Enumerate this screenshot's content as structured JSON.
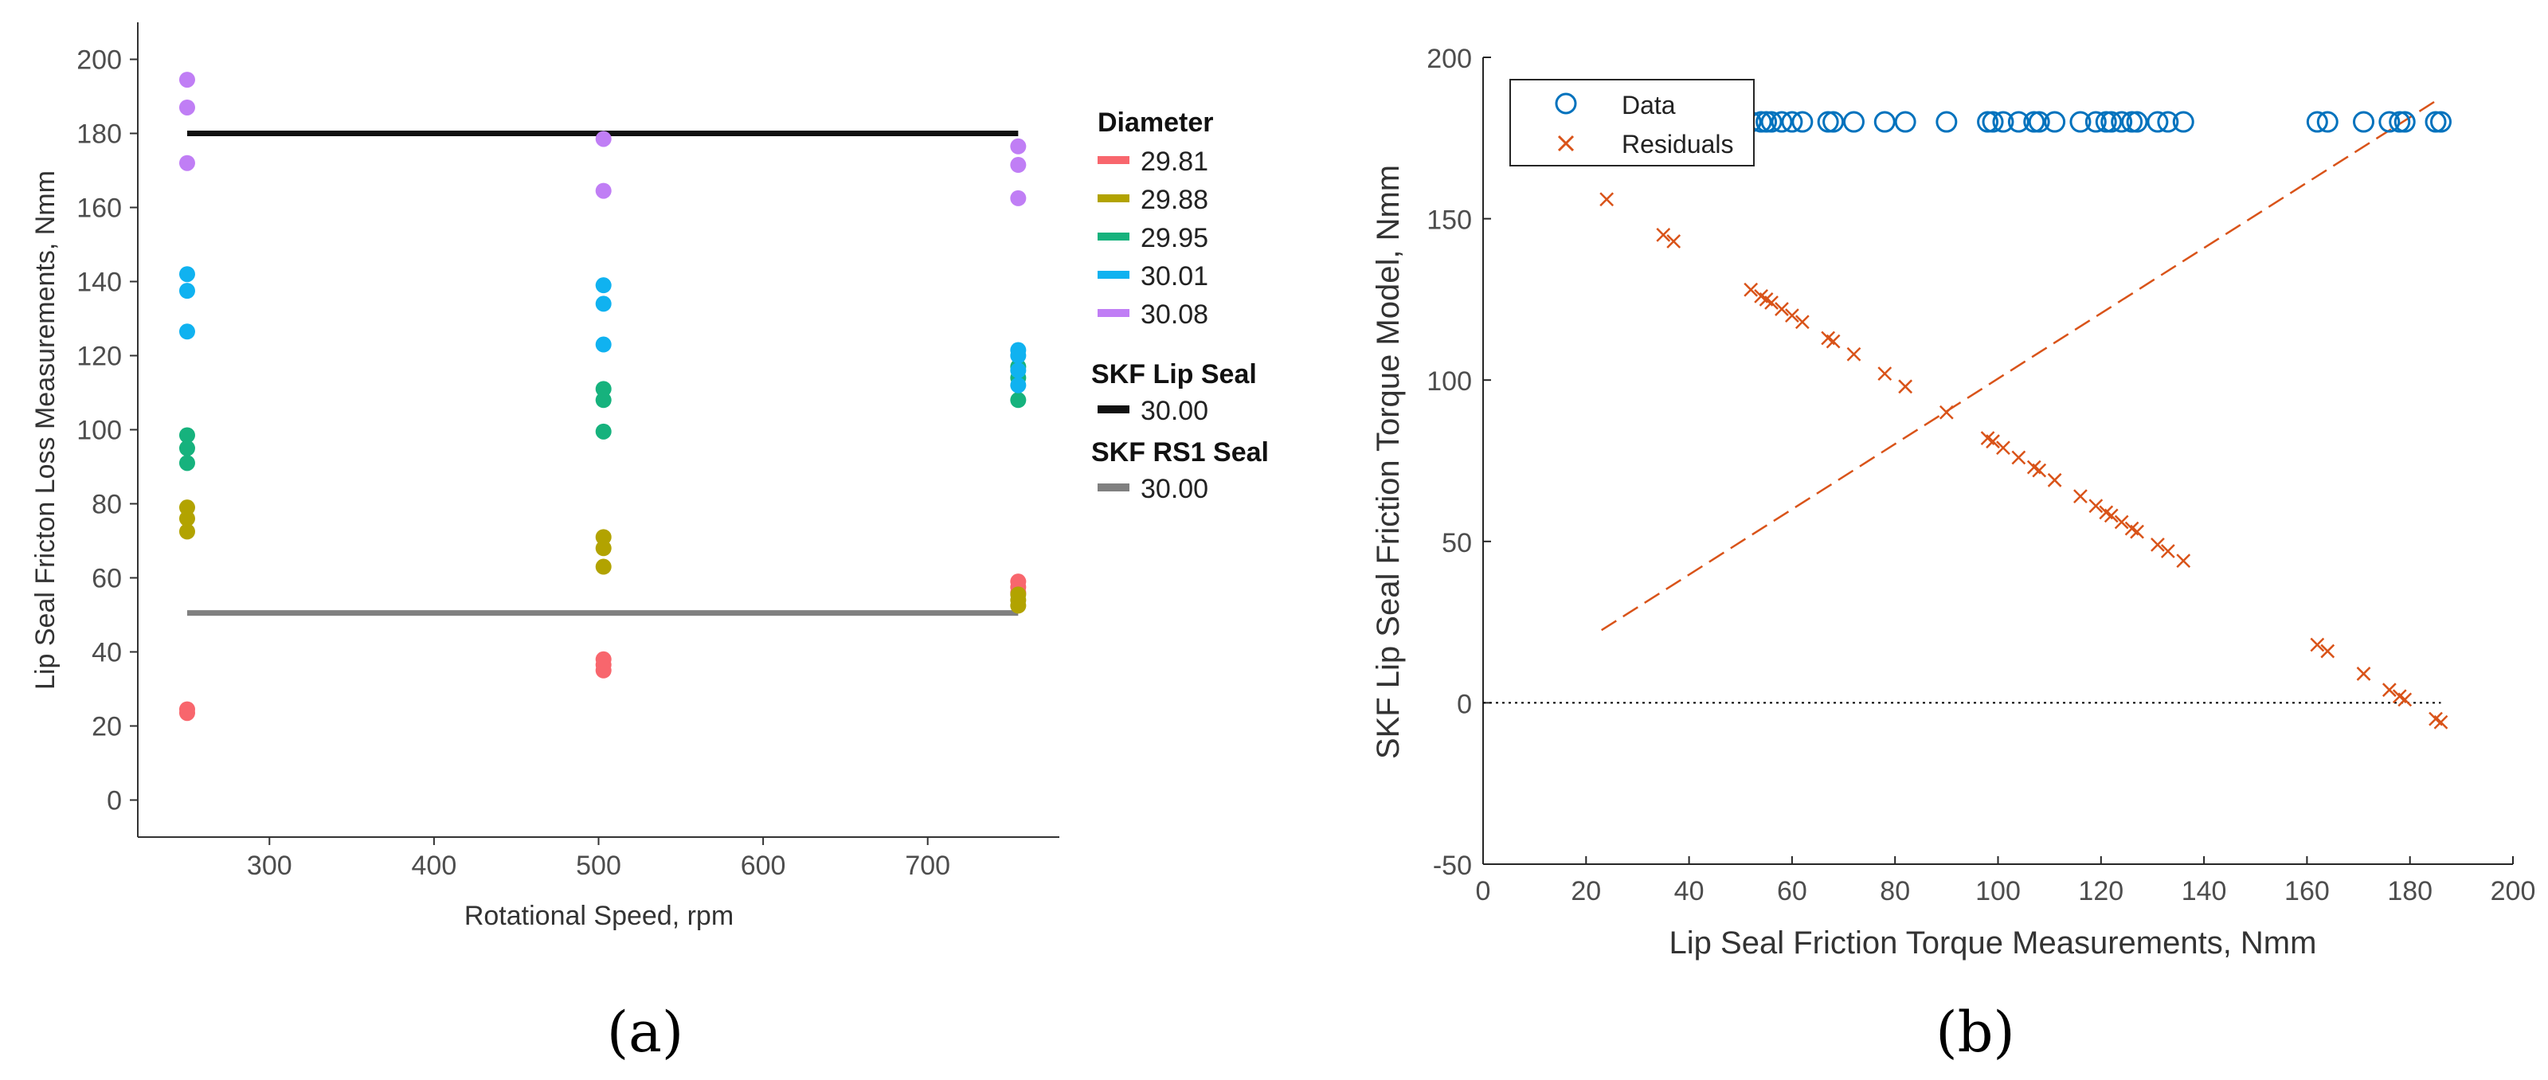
{
  "chart_data": [
    {
      "type": "scatter",
      "panel_label": "(a)",
      "title": "",
      "xlabel": "Rotational Speed, rpm",
      "ylabel": "Lip Seal Fricton Loss Measurements, Nmm",
      "xlim": [
        220,
        780
      ],
      "ylim": [
        -10,
        210
      ],
      "xticks": [
        300,
        400,
        500,
        600,
        700
      ],
      "yticks": [
        0,
        20,
        40,
        60,
        80,
        100,
        120,
        140,
        160,
        180,
        200
      ],
      "legend_position": "right",
      "legend_title_diameter": "Diameter",
      "series": [
        {
          "name": "29.81",
          "color": "#f8666d",
          "points": [
            [
              250,
              23.5
            ],
            [
              250,
              24.5
            ],
            [
              503,
              35
            ],
            [
              503,
              36.5
            ],
            [
              503,
              38
            ],
            [
              755,
              56
            ],
            [
              755,
              57.5
            ],
            [
              755,
              59
            ]
          ]
        },
        {
          "name": "29.88",
          "color": "#b2a300",
          "points": [
            [
              250,
              72.5
            ],
            [
              250,
              76
            ],
            [
              250,
              79
            ],
            [
              503,
              63
            ],
            [
              503,
              68
            ],
            [
              503,
              71
            ],
            [
              755,
              52.5
            ],
            [
              755,
              54
            ],
            [
              755,
              55.5
            ]
          ]
        },
        {
          "name": "29.95",
          "color": "#16b27d",
          "points": [
            [
              250,
              91
            ],
            [
              250,
              95
            ],
            [
              250,
              98.5
            ],
            [
              503,
              99.5
            ],
            [
              503,
              108
            ],
            [
              503,
              111
            ],
            [
              755,
              108
            ],
            [
              755,
              114
            ],
            [
              755,
              117
            ]
          ]
        },
        {
          "name": "30.01",
          "color": "#10b2f0",
          "points": [
            [
              250,
              126.5
            ],
            [
              250,
              137.5
            ],
            [
              250,
              142
            ],
            [
              503,
              123
            ],
            [
              503,
              134
            ],
            [
              503,
              139
            ],
            [
              755,
              112
            ],
            [
              755,
              116
            ],
            [
              755,
              120
            ],
            [
              755,
              121.5
            ]
          ]
        },
        {
          "name": "30.08",
          "color": "#c07ef5",
          "points": [
            [
              250,
              172
            ],
            [
              250,
              187
            ],
            [
              250,
              194.5
            ],
            [
              503,
              164.5
            ],
            [
              503,
              178.5
            ],
            [
              755,
              162.5
            ],
            [
              755,
              171.5
            ],
            [
              755,
              176.5
            ]
          ]
        }
      ],
      "reference_lines": [
        {
          "group": "SKF Lip Seal",
          "name": "30.00",
          "color": "#111111",
          "y": 180,
          "x_range": [
            250,
            755
          ]
        },
        {
          "group": "SKF RS1 Seal",
          "name": "30.00",
          "color": "#808080",
          "y": 50.5,
          "x_range": [
            250,
            755
          ]
        }
      ]
    },
    {
      "type": "scatter",
      "panel_label": "(b)",
      "title": "",
      "xlabel": "Lip Seal Friction Torque Measurements, Nmm",
      "ylabel": "SKF Lip Seal Friction Torque Model, Nmm",
      "xlim": [
        0,
        200
      ],
      "ylim": [
        -50,
        200
      ],
      "xticks": [
        0,
        20,
        40,
        60,
        80,
        100,
        120,
        140,
        160,
        180,
        200
      ],
      "yticks": [
        -50,
        0,
        50,
        100,
        150,
        200
      ],
      "legend_position": "top-left",
      "data_y": 180,
      "data_x": [
        24,
        35,
        37,
        52,
        54,
        55,
        56,
        58,
        60,
        62,
        67,
        68,
        72,
        78,
        82,
        90,
        98,
        99,
        101,
        104,
        107,
        108,
        111,
        116,
        119,
        121,
        122,
        124,
        126,
        127,
        131,
        133,
        136,
        162,
        164,
        171,
        176,
        178,
        179,
        185,
        186
      ],
      "series": [
        {
          "name": "Data",
          "marker": "circle",
          "color": "#0072bd"
        },
        {
          "name": "Residuals",
          "marker": "x",
          "color": "#d95319",
          "slope": -1,
          "intercept": 180
        }
      ],
      "fit_line": {
        "color": "#d95319",
        "style": "dashed",
        "x": [
          23,
          186
        ],
        "y": [
          22.5,
          187.5
        ]
      },
      "zero_line": {
        "y": 0,
        "x_range": [
          0,
          186
        ],
        "style": "dotted",
        "color": "#000000"
      }
    }
  ]
}
